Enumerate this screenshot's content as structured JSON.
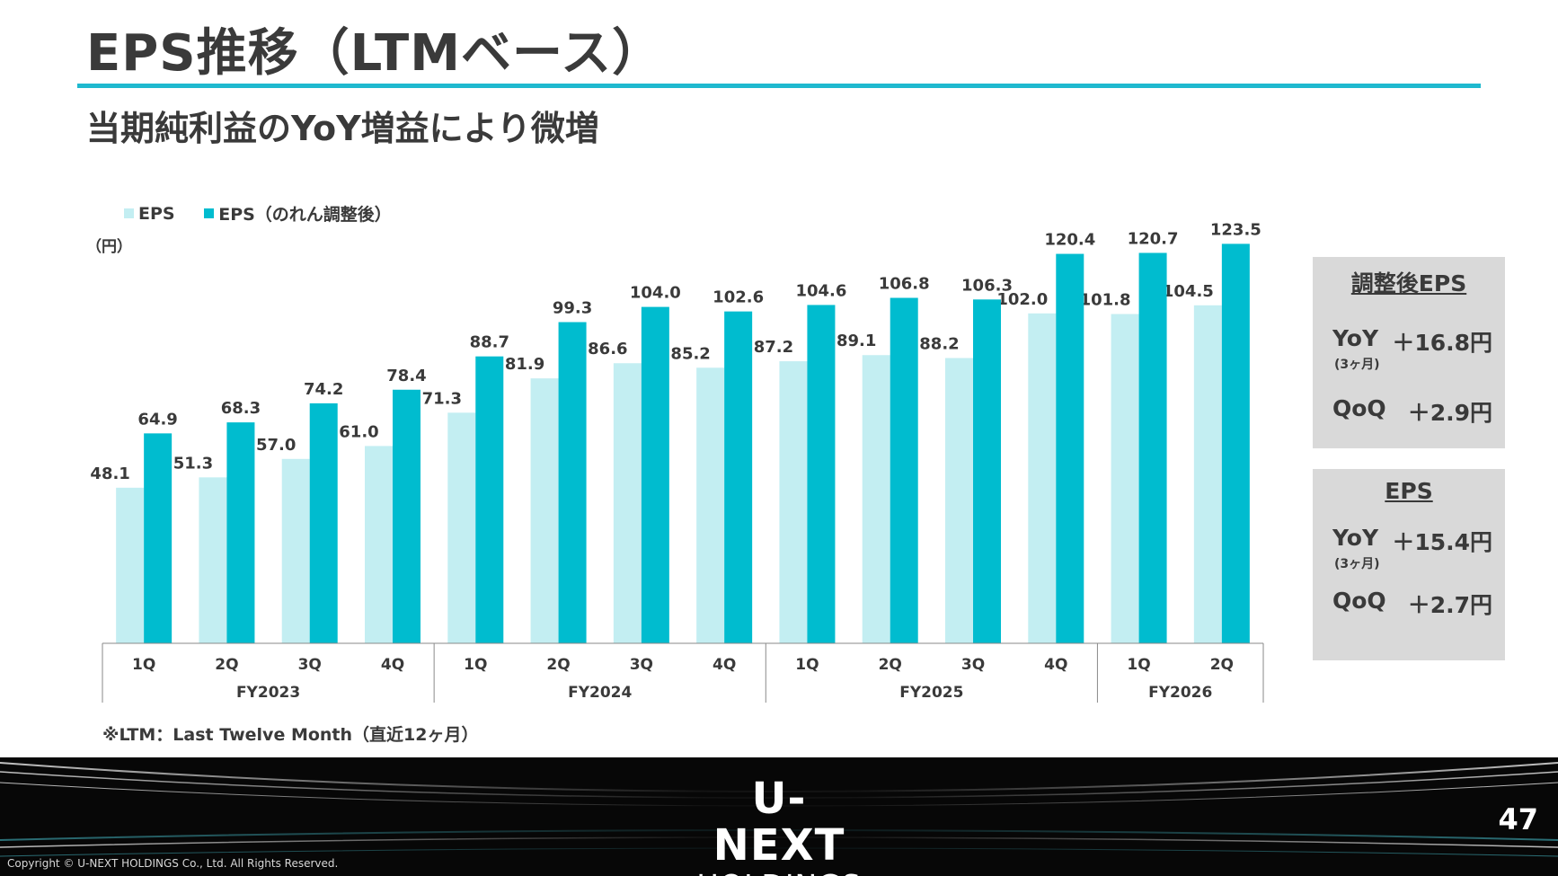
{
  "title": "EPS推移（LTMベース）",
  "subtitle": "当期純利益のYoY増益により微増",
  "unit_label": "（円）",
  "legend": [
    {
      "label": "EPS",
      "color": "#c3eef2"
    },
    {
      "label": "EPS（のれん調整後）",
      "color": "#00bccf"
    }
  ],
  "footnote": "※LTM：Last Twelve Month（直近12ヶ月）",
  "chart_data": {
    "type": "bar",
    "categories": [
      "1Q",
      "2Q",
      "3Q",
      "4Q",
      "1Q",
      "2Q",
      "3Q",
      "4Q",
      "1Q",
      "2Q",
      "3Q",
      "4Q",
      "1Q",
      "2Q"
    ],
    "groups": [
      {
        "label": "FY2023",
        "count": 4
      },
      {
        "label": "FY2024",
        "count": 4
      },
      {
        "label": "FY2025",
        "count": 4
      },
      {
        "label": "FY2026",
        "count": 2
      }
    ],
    "series": [
      {
        "name": "EPS",
        "color": "#c3eef2",
        "values": [
          48.1,
          51.3,
          57.0,
          61.0,
          71.3,
          81.9,
          86.6,
          85.2,
          87.2,
          89.1,
          88.2,
          102.0,
          101.8,
          104.5
        ]
      },
      {
        "name": "EPS（のれん調整後）",
        "color": "#00bccf",
        "values": [
          64.9,
          68.3,
          74.2,
          78.4,
          88.7,
          99.3,
          104.0,
          102.6,
          104.6,
          106.8,
          106.3,
          120.4,
          120.7,
          123.5
        ]
      }
    ],
    "ylim": [
      0,
      135
    ],
    "grid": false,
    "legend_position": "top-left"
  },
  "kpi_boxes": [
    {
      "title": "調整後EPS",
      "yoy_label": "YoY",
      "yoy_sub": "(3ヶ月)",
      "yoy_value": "＋16.8円",
      "qoq_label": "QoQ",
      "qoq_value": "＋2.9円"
    },
    {
      "title": "EPS",
      "yoy_label": "YoY",
      "yoy_sub": "(3ヶ月)",
      "yoy_value": "＋15.4円",
      "qoq_label": "QoQ",
      "qoq_value": "＋2.7円"
    }
  ],
  "footer": {
    "logo_line1": "U-NEXT",
    "logo_line2": "HOLDINGS",
    "page_number": "47",
    "copyright": "Copyright © U-NEXT HOLDINGS Co., Ltd. All Rights Reserved."
  }
}
